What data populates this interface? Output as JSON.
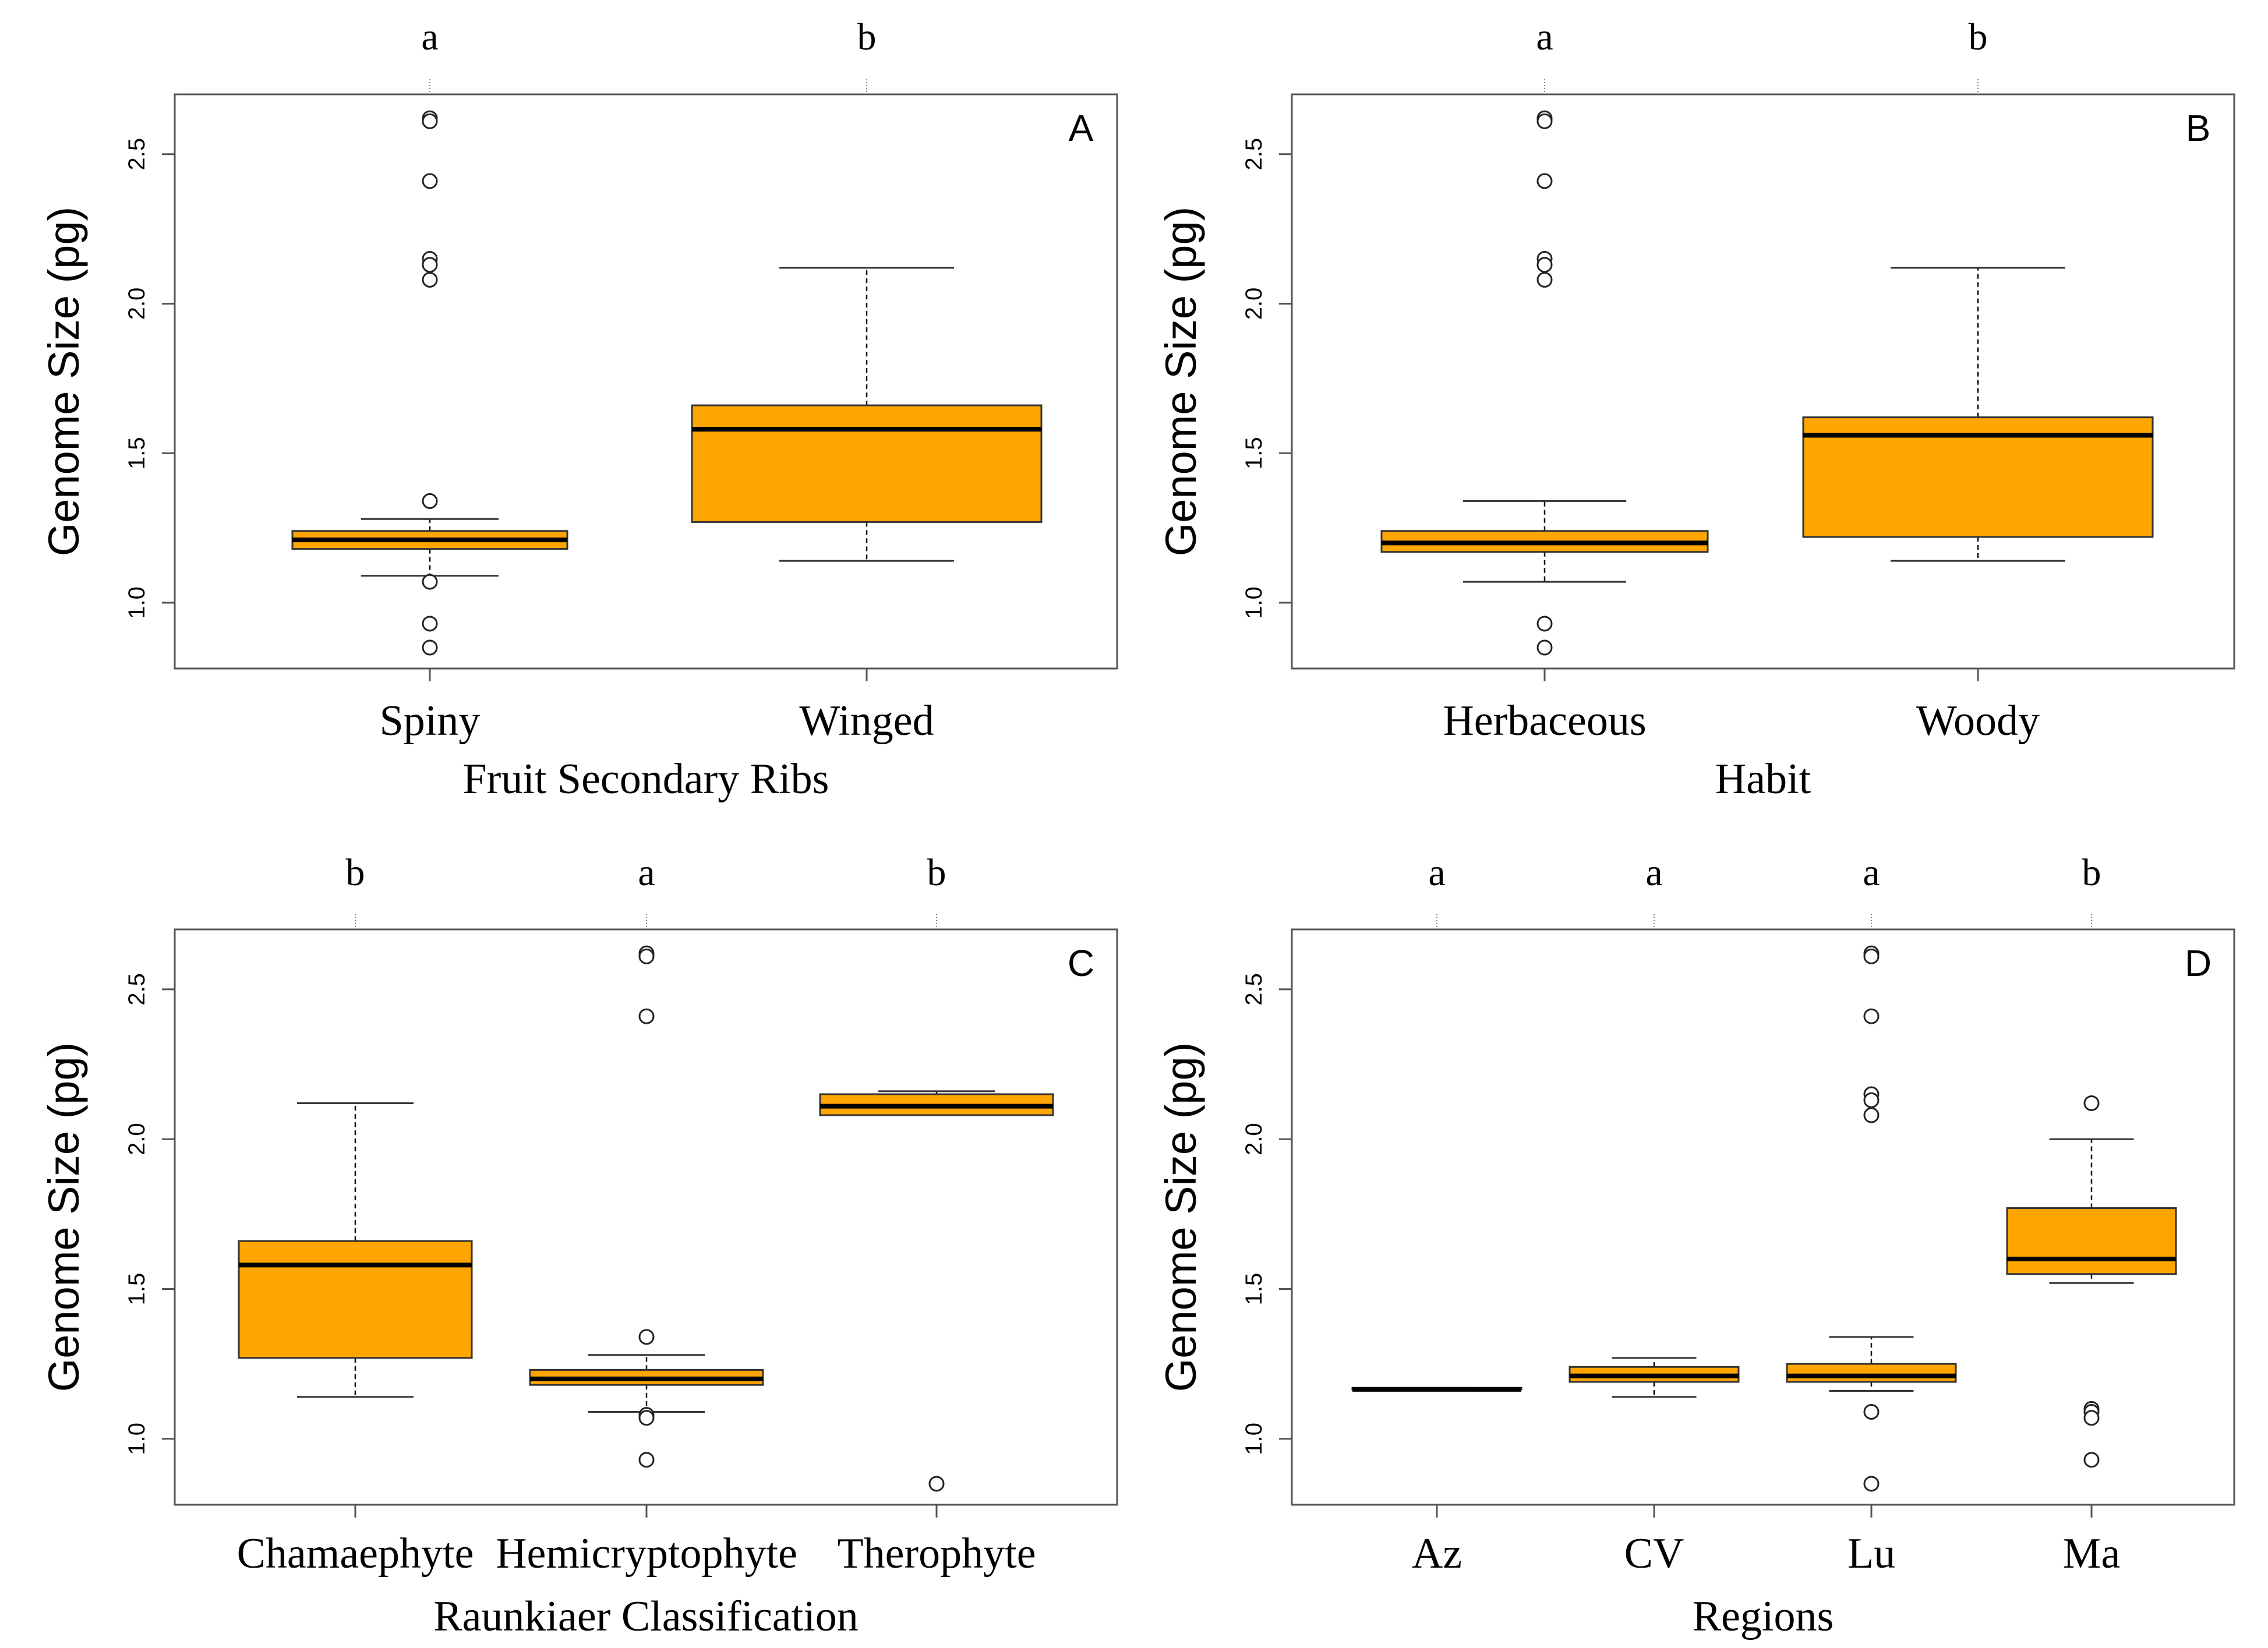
{
  "colors": {
    "box_fill": "#FFA500",
    "stroke": "#000000",
    "outlier": "#ffffff",
    "axis": "#555555"
  },
  "chart_data": [
    {
      "type": "boxplot",
      "panel": "A",
      "ylabel": "Genome Size (pg)",
      "xlabel": "Fruit Secondary Ribs",
      "ylim": [
        0.78,
        2.7
      ],
      "yticks": [
        1.0,
        1.5,
        2.0,
        2.5
      ],
      "ytick_labels": [
        "1.0",
        "1.5",
        "2.0",
        "2.5"
      ],
      "categories": [
        "Spiny",
        "Winged"
      ],
      "significance": [
        "a",
        "b"
      ],
      "boxes": [
        {
          "whisker_low": 1.09,
          "q1": 1.18,
          "median": 1.21,
          "q3": 1.24,
          "whisker_high": 1.28,
          "outliers": [
            2.62,
            2.61,
            2.41,
            2.15,
            2.13,
            2.08,
            1.34,
            1.07,
            0.93,
            0.85
          ]
        },
        {
          "whisker_low": 1.14,
          "q1": 1.27,
          "median": 1.58,
          "q3": 1.66,
          "whisker_high": 2.12,
          "outliers": []
        }
      ]
    },
    {
      "type": "boxplot",
      "panel": "B",
      "ylabel": "Genome Size (pg)",
      "xlabel": "Habit",
      "ylim": [
        0.78,
        2.7
      ],
      "yticks": [
        1.0,
        1.5,
        2.0,
        2.5
      ],
      "ytick_labels": [
        "1.0",
        "1.5",
        "2.0",
        "2.5"
      ],
      "categories": [
        "Herbaceous",
        "Woody"
      ],
      "significance": [
        "a",
        "b"
      ],
      "boxes": [
        {
          "whisker_low": 1.07,
          "q1": 1.17,
          "median": 1.2,
          "q3": 1.24,
          "whisker_high": 1.34,
          "outliers": [
            2.62,
            2.61,
            2.41,
            2.15,
            2.13,
            2.08,
            0.93,
            0.85
          ]
        },
        {
          "whisker_low": 1.14,
          "q1": 1.22,
          "median": 1.56,
          "q3": 1.62,
          "whisker_high": 2.12,
          "outliers": []
        }
      ]
    },
    {
      "type": "boxplot",
      "panel": "C",
      "ylabel": "Genome Size (pg)",
      "xlabel": "Raunkiaer Classification",
      "ylim": [
        0.78,
        2.7
      ],
      "yticks": [
        1.0,
        1.5,
        2.0,
        2.5
      ],
      "ytick_labels": [
        "1.0",
        "1.5",
        "2.0",
        "2.5"
      ],
      "categories": [
        "Chamaephyte",
        "Hemicryptophyte",
        "Therophyte"
      ],
      "significance": [
        "b",
        "a",
        "b"
      ],
      "boxes": [
        {
          "whisker_low": 1.14,
          "q1": 1.27,
          "median": 1.58,
          "q3": 1.66,
          "whisker_high": 2.12,
          "outliers": []
        },
        {
          "whisker_low": 1.09,
          "q1": 1.18,
          "median": 1.2,
          "q3": 1.23,
          "whisker_high": 1.28,
          "outliers": [
            2.62,
            2.61,
            2.41,
            1.34,
            1.08,
            1.07,
            0.93
          ]
        },
        {
          "whisker_low": 2.08,
          "q1": 2.08,
          "median": 2.11,
          "q3": 2.15,
          "whisker_high": 2.16,
          "outliers": [
            0.85
          ]
        }
      ]
    },
    {
      "type": "boxplot",
      "panel": "D",
      "ylabel": "Genome Size (pg)",
      "xlabel": "Regions",
      "ylim": [
        0.78,
        2.7
      ],
      "yticks": [
        1.0,
        1.5,
        2.0,
        2.5
      ],
      "ytick_labels": [
        "1.0",
        "1.5",
        "2.0",
        "2.5"
      ],
      "categories": [
        "Az",
        "CV",
        "Lu",
        "Ma"
      ],
      "significance": [
        "a",
        "a",
        "a",
        "b"
      ],
      "boxes": [
        {
          "whisker_low": 1.165,
          "q1": 1.165,
          "median": 1.165,
          "q3": 1.17,
          "whisker_high": 1.17,
          "outliers": []
        },
        {
          "whisker_low": 1.14,
          "q1": 1.19,
          "median": 1.21,
          "q3": 1.24,
          "whisker_high": 1.27,
          "outliers": []
        },
        {
          "whisker_low": 1.16,
          "q1": 1.19,
          "median": 1.21,
          "q3": 1.25,
          "whisker_high": 1.34,
          "outliers": [
            2.62,
            2.61,
            2.41,
            2.15,
            2.13,
            2.08,
            1.09,
            0.85
          ]
        },
        {
          "whisker_low": 1.52,
          "q1": 1.55,
          "median": 1.6,
          "q3": 1.77,
          "whisker_high": 2.0,
          "outliers": [
            2.12,
            1.1,
            1.09,
            1.07,
            0.93
          ]
        }
      ]
    }
  ]
}
